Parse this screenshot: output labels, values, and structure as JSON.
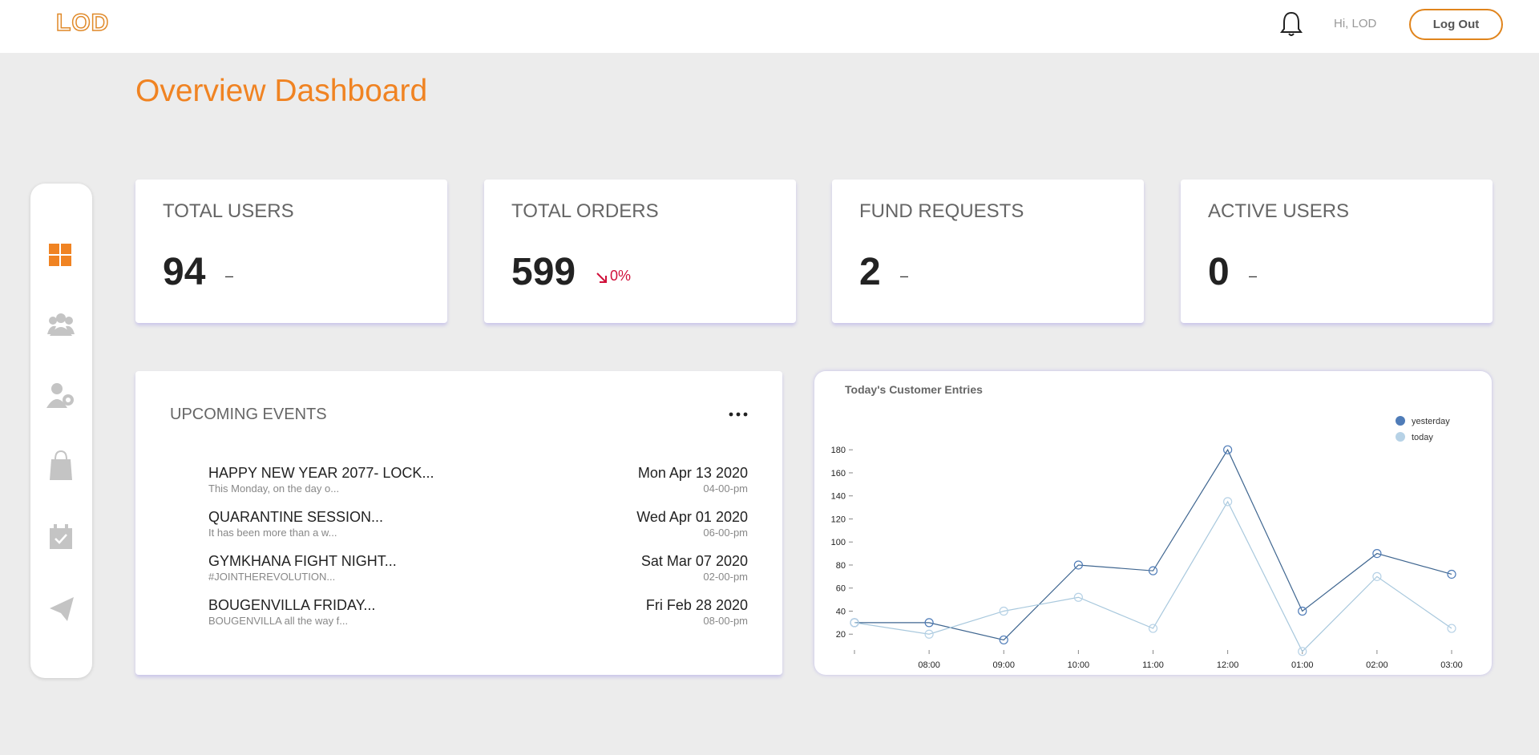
{
  "header": {
    "logo": "LOD",
    "greeting": "Hi, LOD",
    "logout": "Log Out"
  },
  "title": "Overview Dashboard",
  "stats": [
    {
      "label": "TOTAL USERS",
      "value": 94,
      "change": "–"
    },
    {
      "label": "TOTAL ORDERS",
      "value": 599,
      "change": "0%",
      "trend": "down"
    },
    {
      "label": "FUND REQUESTS",
      "value": 2,
      "change": "–"
    },
    {
      "label": "ACTIVE USERS",
      "value": 0,
      "change": "–"
    }
  ],
  "events": {
    "title": "UPCOMING EVENTS",
    "items": [
      {
        "title": "HAPPY NEW YEAR 2077- LOCK...",
        "subtitle": "This Monday, on the day o...",
        "date": "Mon Apr 13 2020",
        "time": "04-00-pm"
      },
      {
        "title": "QUARANTINE SESSION...",
        "subtitle": "It has been more than a w...",
        "date": "Wed Apr 01 2020",
        "time": "06-00-pm"
      },
      {
        "title": "GYMKHANA FIGHT NIGHT...",
        "subtitle": "#JOINTHEREVOLUTION...",
        "date": "Sat Mar 07 2020",
        "time": "02-00-pm"
      },
      {
        "title": "BOUGENVILLA FRIDAY...",
        "subtitle": "BOUGENVILLA all the way f...",
        "date": "Fri Feb 28 2020",
        "time": "08-00-pm"
      }
    ]
  },
  "chart_data": {
    "type": "line",
    "title": "Today's Customer Entries",
    "categories": [
      null,
      "08:00",
      "09:00",
      "10:00",
      "11:00",
      "12:00",
      "01:00",
      "02:00",
      "03:00"
    ],
    "series": [
      {
        "name": "yesterday",
        "color": "#3f6690",
        "marker_color": "#4f7cb8",
        "values": [
          30,
          30,
          15,
          80,
          75,
          180,
          40,
          90,
          72
        ]
      },
      {
        "name": "today",
        "color": "#a8c8dd",
        "marker_color": "#b7d2e6",
        "values": [
          30,
          20,
          40,
          52,
          25,
          135,
          5,
          70,
          25
        ]
      }
    ],
    "ylim": [
      0,
      185
    ],
    "yticks": [
      20,
      40,
      60,
      80,
      100,
      120,
      140,
      160,
      180
    ],
    "legend": "top-right"
  }
}
